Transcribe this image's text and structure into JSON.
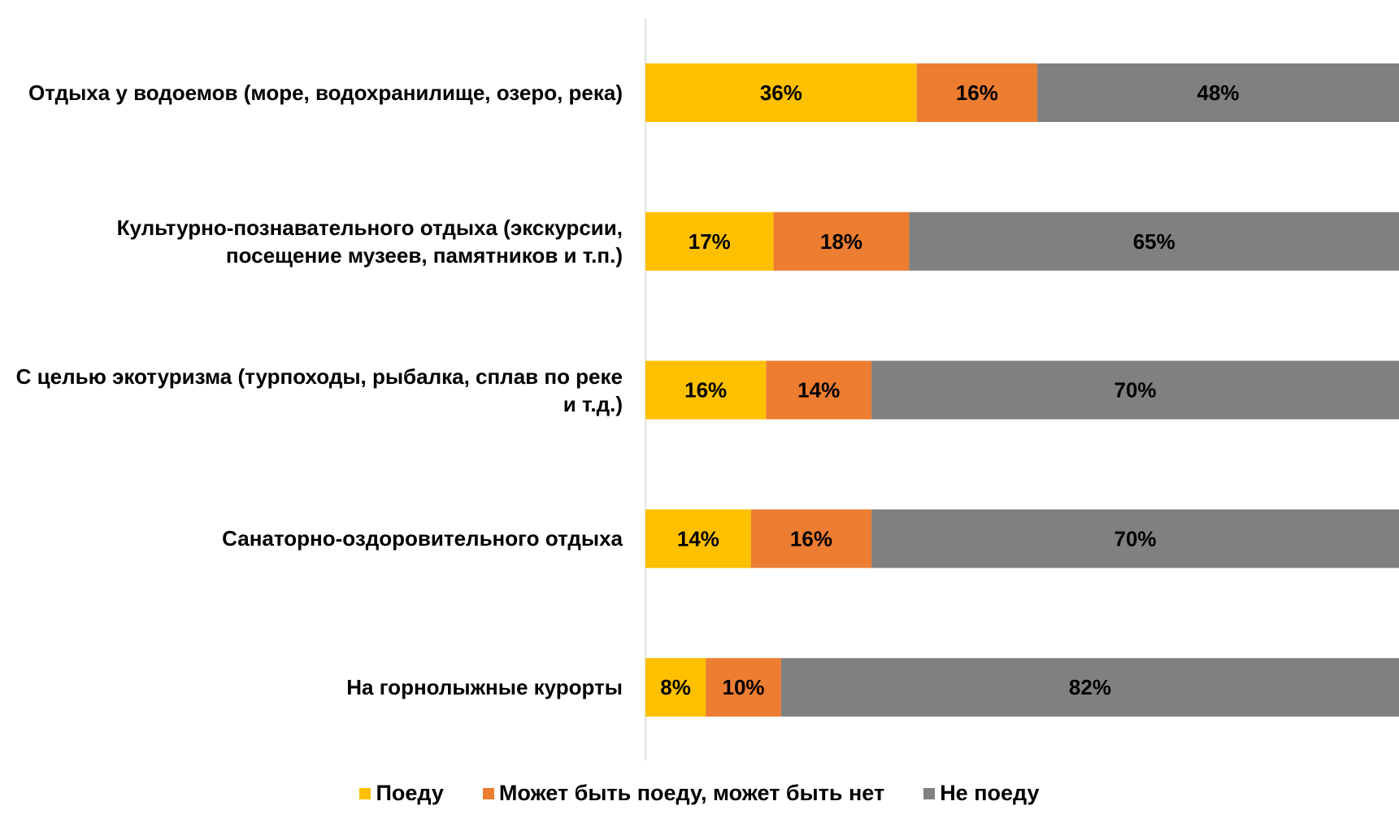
{
  "chart_data": {
    "type": "stacked-bar-horizontal",
    "categories": [
      "Отдыха у водоемов (море, водохранилище, озеро, река)",
      "Культурно-познавательного отдыха (экскурсии, посещение музеев, памятников и т.п.)",
      "С целью экотуризма (турпоходы, рыбалка, сплав по реке и т.д.)",
      "Санаторно-оздоровительного отдыха",
      "На горнолыжные курорты"
    ],
    "series": [
      {
        "name": "Поеду",
        "color": "#FFC000",
        "values": [
          36,
          17,
          16,
          14,
          8
        ],
        "value_labels": [
          "36%",
          "17%",
          "16%",
          "14%",
          "8%"
        ]
      },
      {
        "name": "Может быть поеду, может быть нет",
        "color": "#ED7D31",
        "values": [
          16,
          18,
          14,
          16,
          10
        ],
        "value_labels": [
          "16%",
          "18%",
          "14%",
          "16%",
          "10%"
        ]
      },
      {
        "name": "Не поеду",
        "color": "#808080",
        "values": [
          48,
          65,
          70,
          70,
          82
        ],
        "value_labels": [
          "48%",
          "65%",
          "70%",
          "70%",
          "82%"
        ]
      }
    ],
    "xlim": [
      0,
      100
    ],
    "legend": "bottom"
  }
}
